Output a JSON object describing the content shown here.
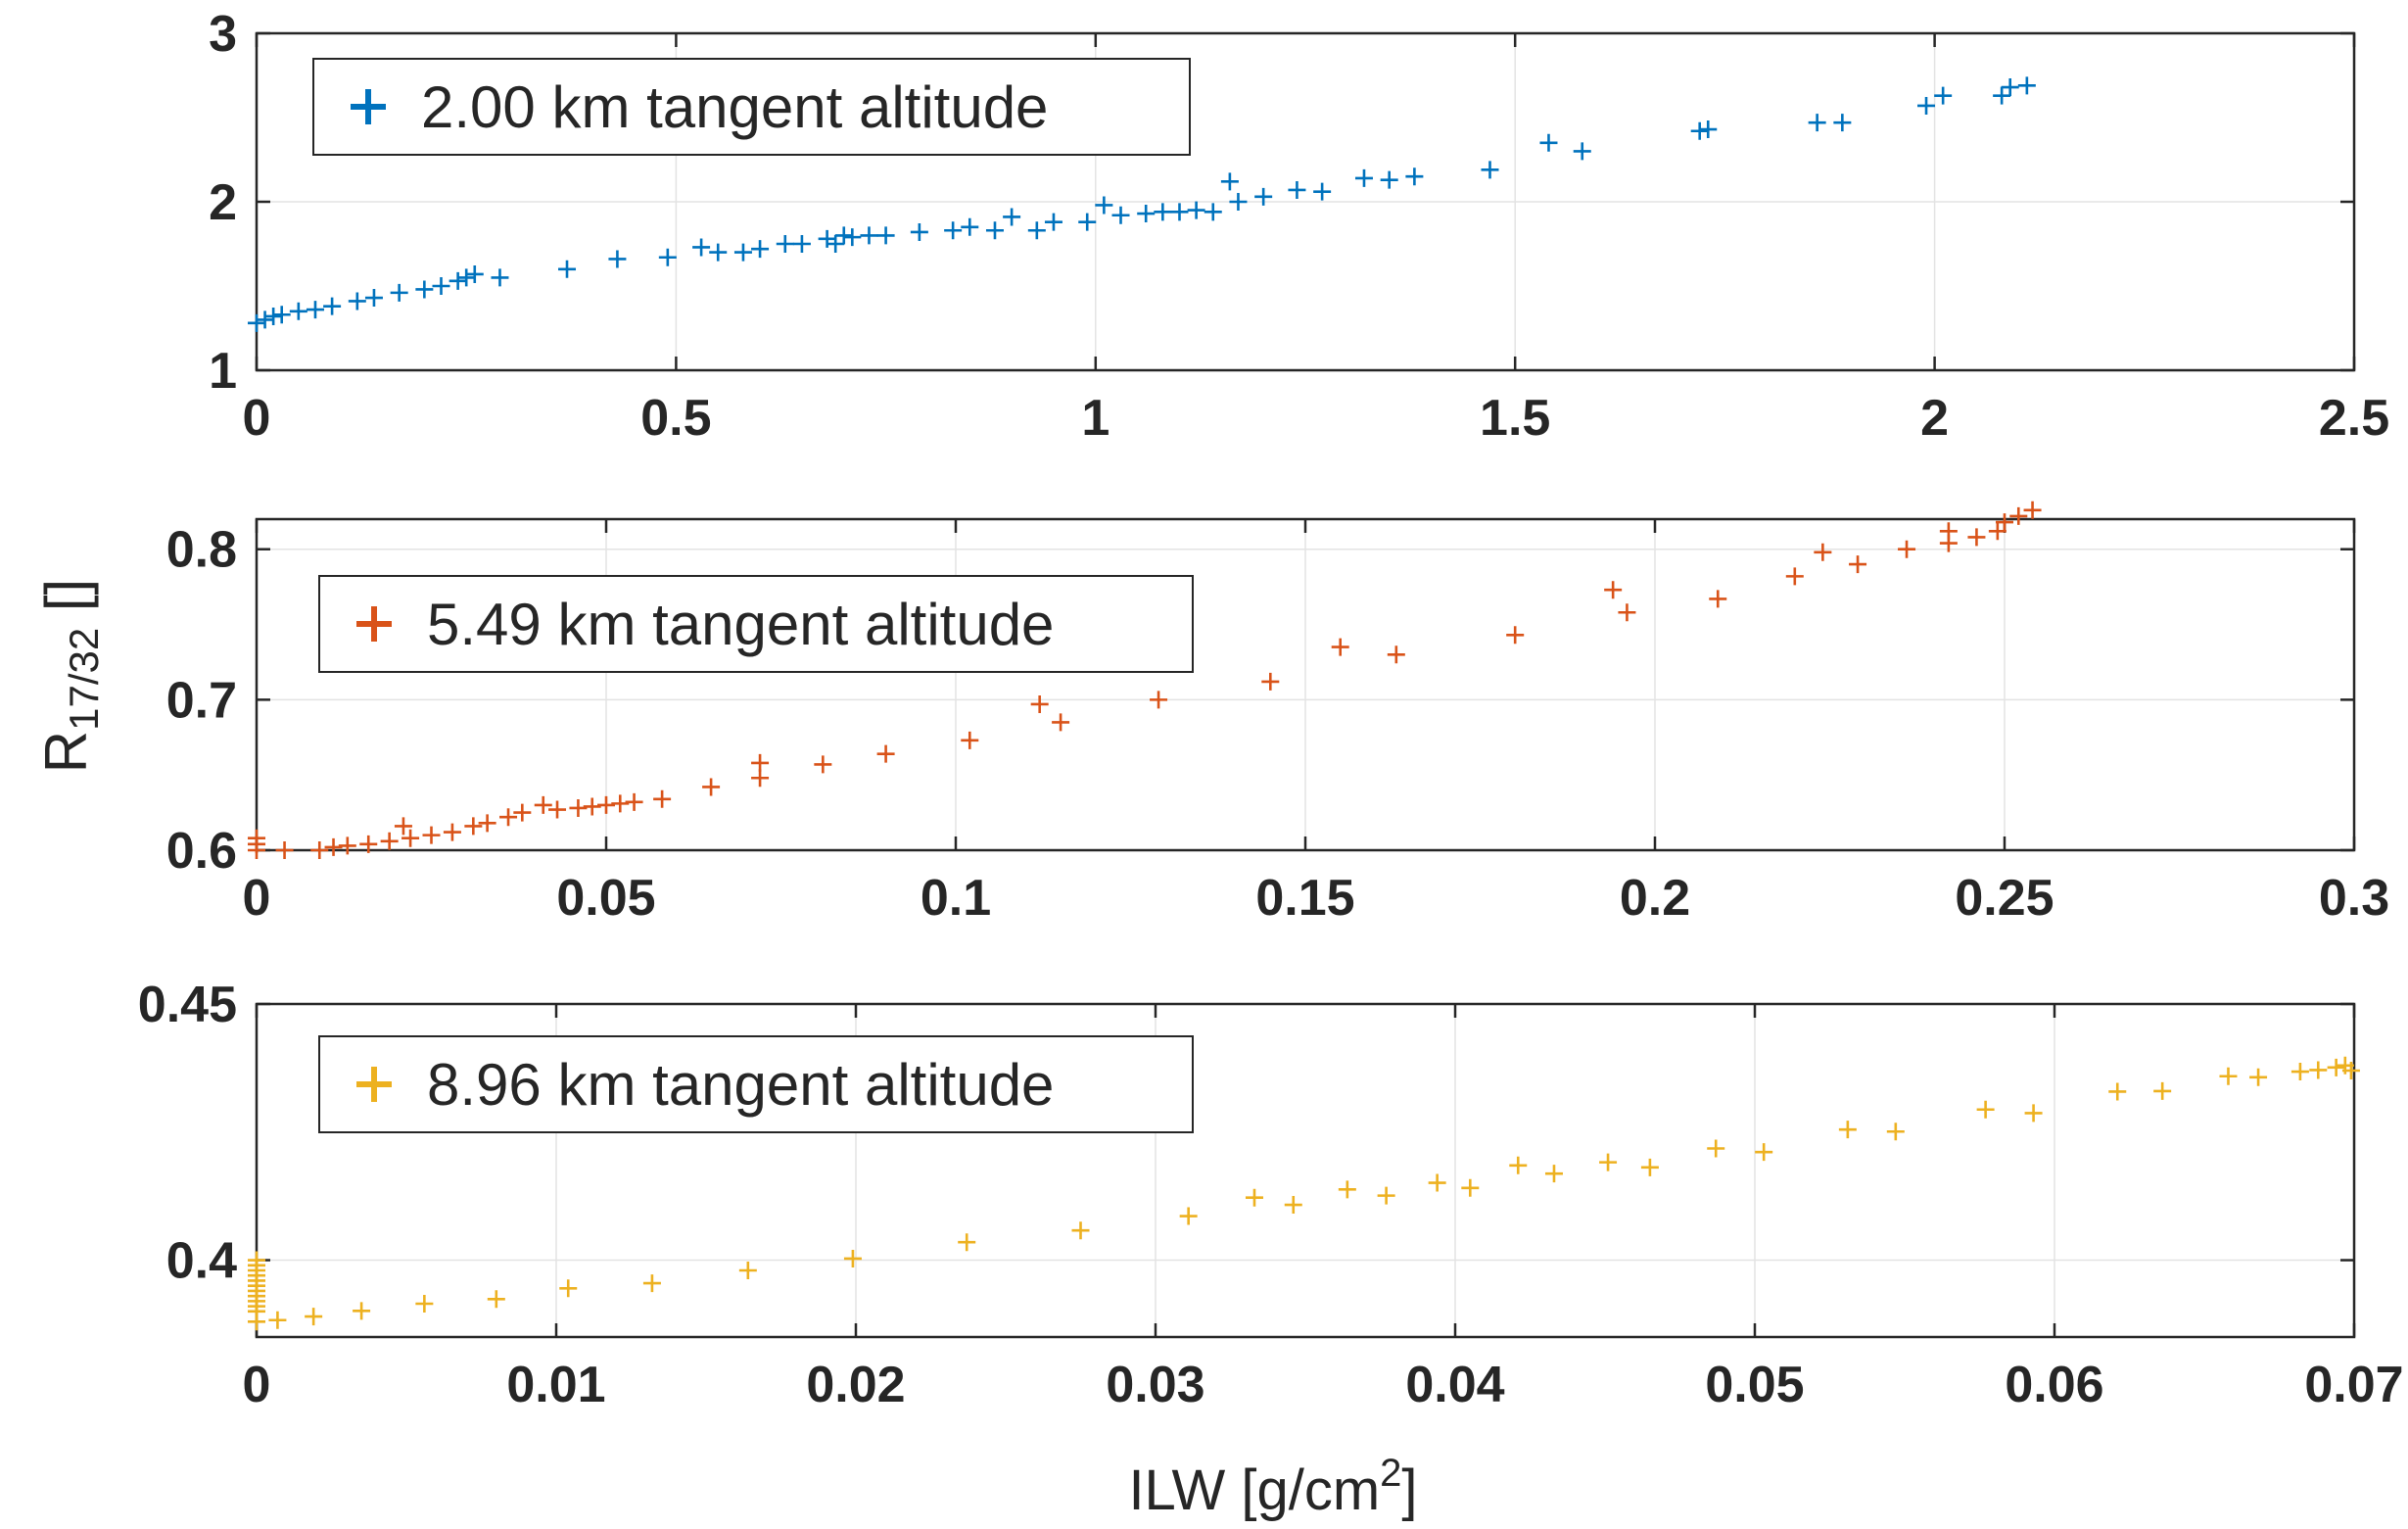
{
  "figure": {
    "ylabel_main": "R",
    "ylabel_sub": "17/32",
    "ylabel_unit": " []",
    "xlabel_main": "ILW [g/cm",
    "xlabel_sup": "2",
    "xlabel_close": "]"
  },
  "chart_data": [
    {
      "type": "scatter",
      "marker": "+",
      "color": "#0072BD",
      "legend": "2.00 km tangent altitude",
      "legend_position": "top-left",
      "grid": true,
      "xlim": [
        0,
        2.5
      ],
      "ylim": [
        1,
        3
      ],
      "xticks": [
        "0",
        "0.5",
        "1",
        "1.5",
        "2",
        "2.5"
      ],
      "yticks": [
        "1",
        "2",
        "3"
      ],
      "x": [
        0.0,
        0.01,
        0.02,
        0.03,
        0.05,
        0.07,
        0.09,
        0.12,
        0.14,
        0.17,
        0.2,
        0.22,
        0.24,
        0.25,
        0.26,
        0.29,
        0.37,
        0.43,
        0.49,
        0.53,
        0.55,
        0.58,
        0.6,
        0.63,
        0.65,
        0.68,
        0.69,
        0.7,
        0.71,
        0.73,
        0.75,
        0.79,
        0.83,
        0.85,
        0.88,
        0.9,
        0.93,
        0.95,
        0.99,
        1.01,
        1.03,
        1.06,
        1.08,
        1.1,
        1.12,
        1.14,
        1.16,
        1.17,
        1.2,
        1.24,
        1.27,
        1.32,
        1.35,
        1.38,
        1.47,
        1.54,
        1.58,
        1.72,
        1.73,
        1.86,
        1.89,
        1.99,
        2.01,
        2.08,
        2.09,
        2.11
      ],
      "y": [
        1.28,
        1.3,
        1.32,
        1.33,
        1.35,
        1.36,
        1.38,
        1.41,
        1.43,
        1.46,
        1.48,
        1.5,
        1.53,
        1.55,
        1.57,
        1.55,
        1.6,
        1.66,
        1.67,
        1.73,
        1.7,
        1.7,
        1.72,
        1.75,
        1.75,
        1.78,
        1.75,
        1.8,
        1.79,
        1.8,
        1.8,
        1.82,
        1.83,
        1.85,
        1.83,
        1.91,
        1.83,
        1.88,
        1.88,
        1.98,
        1.92,
        1.93,
        1.94,
        1.94,
        1.95,
        1.94,
        2.12,
        2.0,
        2.03,
        2.07,
        2.06,
        2.14,
        2.13,
        2.15,
        2.19,
        2.35,
        2.3,
        2.42,
        2.43,
        2.47,
        2.47,
        2.57,
        2.63,
        2.63,
        2.68,
        2.69
      ]
    },
    {
      "type": "scatter",
      "marker": "+",
      "color": "#D95319",
      "legend": "5.49 km tangent altitude",
      "legend_position": "top-left",
      "grid": true,
      "xlim": [
        0,
        0.3
      ],
      "ylim": [
        0.6,
        0.82
      ],
      "xticks": [
        "0",
        "0.05",
        "0.1",
        "0.15",
        "0.2",
        "0.25",
        "0.3"
      ],
      "yticks": [
        "0.6",
        "0.7",
        "0.8"
      ],
      "x": [
        0.0,
        0.0,
        0.0,
        0.004,
        0.009,
        0.011,
        0.013,
        0.016,
        0.019,
        0.021,
        0.022,
        0.025,
        0.028,
        0.031,
        0.033,
        0.036,
        0.038,
        0.041,
        0.043,
        0.046,
        0.048,
        0.05,
        0.052,
        0.054,
        0.058,
        0.065,
        0.072,
        0.072,
        0.081,
        0.09,
        0.102,
        0.112,
        0.115,
        0.129,
        0.145,
        0.155,
        0.163,
        0.18,
        0.194,
        0.196,
        0.209,
        0.22,
        0.224,
        0.229,
        0.236,
        0.242,
        0.242,
        0.246,
        0.249,
        0.25,
        0.252,
        0.254
      ],
      "y": [
        0.6,
        0.604,
        0.608,
        0.6,
        0.6,
        0.602,
        0.603,
        0.604,
        0.606,
        0.616,
        0.608,
        0.61,
        0.612,
        0.616,
        0.618,
        0.622,
        0.625,
        0.63,
        0.627,
        0.628,
        0.629,
        0.63,
        0.631,
        0.632,
        0.634,
        0.642,
        0.648,
        0.658,
        0.657,
        0.664,
        0.673,
        0.697,
        0.685,
        0.7,
        0.712,
        0.735,
        0.73,
        0.743,
        0.773,
        0.758,
        0.767,
        0.782,
        0.798,
        0.79,
        0.8,
        0.804,
        0.812,
        0.808,
        0.812,
        0.818,
        0.822,
        0.826
      ]
    },
    {
      "type": "scatter",
      "marker": "+",
      "color": "#EDB120",
      "legend": "8.96 km tangent altitude",
      "legend_position": "top-left",
      "grid": true,
      "xlim": [
        0,
        0.07
      ],
      "ylim": [
        0.385,
        0.45
      ],
      "xticks": [
        "0",
        "0.01",
        "0.02",
        "0.03",
        "0.04",
        "0.05",
        "0.06",
        "0.07"
      ],
      "yticks": [
        "0.4",
        "0.45"
      ],
      "x": [
        0.0,
        0.0,
        0.0,
        0.0,
        0.0,
        0.0,
        0.0,
        0.0,
        0.0,
        0.0,
        0.0,
        0.0,
        0.0007,
        0.0019,
        0.0035,
        0.0056,
        0.008,
        0.0104,
        0.0132,
        0.0164,
        0.0199,
        0.0237,
        0.0275,
        0.0311,
        0.0333,
        0.0346,
        0.0364,
        0.0377,
        0.0394,
        0.0405,
        0.0421,
        0.0433,
        0.0451,
        0.0465,
        0.0487,
        0.0503,
        0.0531,
        0.0547,
        0.0577,
        0.0593,
        0.0621,
        0.0636,
        0.0658,
        0.0668,
        0.0682,
        0.0688,
        0.0694,
        0.0697,
        0.0699
      ],
      "y": [
        0.388,
        0.39,
        0.392,
        0.394,
        0.396,
        0.398,
        0.4,
        0.391,
        0.393,
        0.395,
        0.397,
        0.399,
        0.3883,
        0.389,
        0.3901,
        0.3915,
        0.3924,
        0.3945,
        0.3955,
        0.398,
        0.4003,
        0.4035,
        0.4058,
        0.4086,
        0.4122,
        0.4108,
        0.4138,
        0.4126,
        0.4151,
        0.4141,
        0.4185,
        0.4169,
        0.4191,
        0.4181,
        0.4218,
        0.4211,
        0.4255,
        0.4251,
        0.4294,
        0.4287,
        0.4329,
        0.433,
        0.4359,
        0.4357,
        0.4368,
        0.4371,
        0.4376,
        0.438,
        0.437
      ]
    }
  ]
}
